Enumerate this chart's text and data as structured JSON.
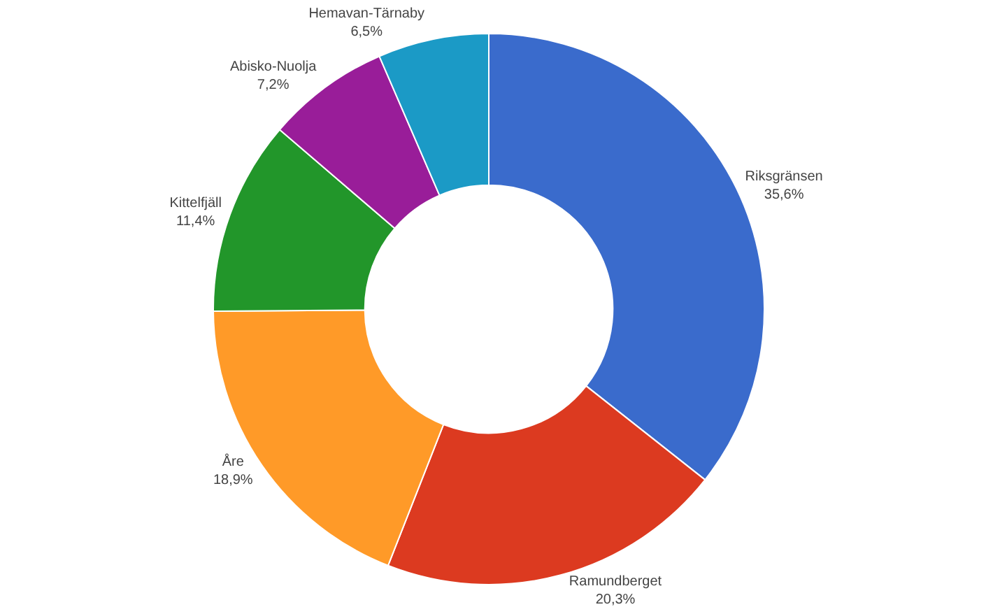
{
  "chart_data": {
    "type": "donut",
    "categories": [
      "Riksgränsen",
      "Ramundberget",
      "Åre",
      "Kittelfjäll",
      "Abisko-Nuolja",
      "Hemavan-Tärnaby"
    ],
    "values": [
      35.6,
      20.3,
      18.9,
      11.4,
      7.2,
      6.5
    ],
    "value_labels": [
      "35,6%",
      "20,3%",
      "18,9%",
      "11,4%",
      "7,2%",
      "6,5%"
    ],
    "colors": [
      "#3a6bcc",
      "#dc3a20",
      "#ff9a28",
      "#22962a",
      "#991d99",
      "#1b9ac6"
    ],
    "legend": false
  }
}
